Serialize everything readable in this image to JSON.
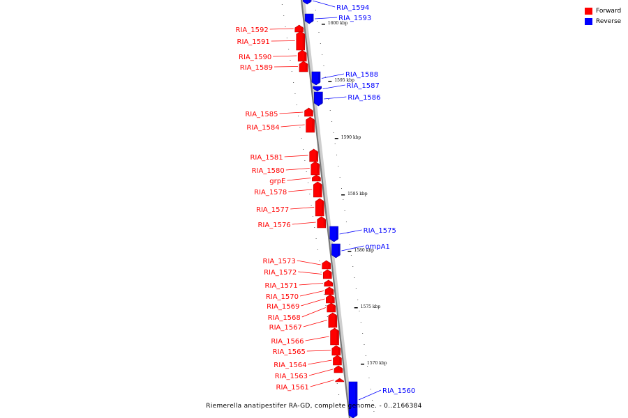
{
  "legend": {
    "forward_label": "Forward",
    "reverse_label": "Reverse",
    "forward_color": "#ff0000",
    "reverse_color": "#0000ff"
  },
  "caption": "Riemerella anatipestifer RA-GD, complete genome. - 0..2166384",
  "scale_ticks": [
    {
      "label": "1600 kbp",
      "kbp": 1600
    },
    {
      "label": "1595 kbp",
      "kbp": 1595
    },
    {
      "label": "1590 kbp",
      "kbp": 1590
    },
    {
      "label": "1585 kbp",
      "kbp": 1585
    },
    {
      "label": "1580 kbp",
      "kbp": 1580
    },
    {
      "label": "1575 kbp",
      "kbp": 1575
    },
    {
      "label": "1570 kbp",
      "kbp": 1570
    }
  ],
  "genes": [
    {
      "name": "RIA_1594",
      "strand": "reverse"
    },
    {
      "name": "RIA_1593",
      "strand": "reverse"
    },
    {
      "name": "RIA_1592",
      "strand": "forward"
    },
    {
      "name": "RIA_1591",
      "strand": "forward"
    },
    {
      "name": "RIA_1590",
      "strand": "forward"
    },
    {
      "name": "RIA_1589",
      "strand": "forward"
    },
    {
      "name": "RIA_1588",
      "strand": "reverse"
    },
    {
      "name": "RIA_1587",
      "strand": "reverse"
    },
    {
      "name": "RIA_1586",
      "strand": "reverse"
    },
    {
      "name": "RIA_1585",
      "strand": "forward"
    },
    {
      "name": "RIA_1584",
      "strand": "forward"
    },
    {
      "name": "RIA_1581",
      "strand": "forward"
    },
    {
      "name": "RIA_1580",
      "strand": "forward"
    },
    {
      "name": "grpE",
      "strand": "forward"
    },
    {
      "name": "RIA_1578",
      "strand": "forward"
    },
    {
      "name": "RIA_1577",
      "strand": "forward"
    },
    {
      "name": "RIA_1576",
      "strand": "forward"
    },
    {
      "name": "RIA_1575",
      "strand": "reverse"
    },
    {
      "name": "ompA1",
      "strand": "reverse"
    },
    {
      "name": "RIA_1573",
      "strand": "forward"
    },
    {
      "name": "RIA_1572",
      "strand": "forward"
    },
    {
      "name": "RIA_1571",
      "strand": "forward"
    },
    {
      "name": "RIA_1570",
      "strand": "forward"
    },
    {
      "name": "RIA_1569",
      "strand": "forward"
    },
    {
      "name": "RIA_1568",
      "strand": "forward"
    },
    {
      "name": "RIA_1567",
      "strand": "forward"
    },
    {
      "name": "RIA_1566",
      "strand": "forward"
    },
    {
      "name": "RIA_1565",
      "strand": "forward"
    },
    {
      "name": "RIA_1564",
      "strand": "forward"
    },
    {
      "name": "RIA_1563",
      "strand": "forward"
    },
    {
      "name": "RIA_1561",
      "strand": "forward"
    },
    {
      "name": "RIA_1560",
      "strand": "reverse"
    }
  ]
}
